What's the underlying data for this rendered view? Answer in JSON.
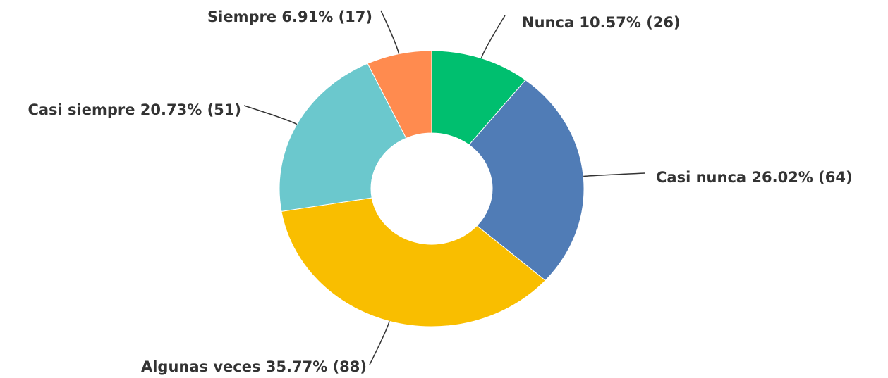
{
  "chart_data": {
    "type": "pie",
    "categories": [
      "Nunca",
      "Casi nunca",
      "Algunas veces",
      "Casi siempre",
      "Siempre"
    ],
    "values": [
      10.57,
      26.02,
      35.77,
      20.73,
      6.91
    ],
    "value_labels": [
      "10.57% (26)",
      "26.02% (64)",
      "35.77% (88)",
      "20.73% (51)",
      "6.91% (17)"
    ],
    "colors": [
      "#00bf6f",
      "#507cb6",
      "#f9be00",
      "#6bc8cd",
      "#ff8b4f"
    ],
    "donut": true
  }
}
